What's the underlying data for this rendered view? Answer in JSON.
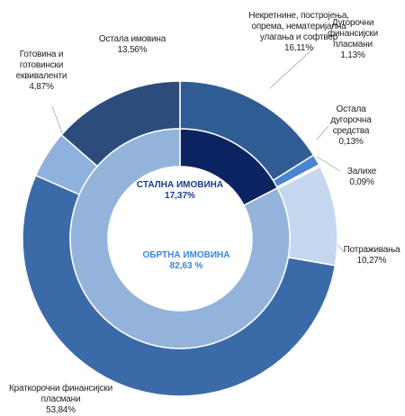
{
  "chart_data": {
    "type": "donut",
    "rings": [
      {
        "categories": [
          "Некретнине, постројења, опрема, нематеријална улагања и софтвер",
          "Дугорочни финансијски пласмани",
          "Остала дугорочна средства",
          "Залихе",
          "Потраживања",
          "Краткорочни финансијски пласмани",
          "Готовина и готовински еквиваленти",
          "Остала имовина"
        ],
        "values": [
          16.11,
          1.13,
          0.13,
          0.09,
          10.27,
          53.84,
          4.87,
          13.56
        ],
        "value_labels": [
          "16,11%",
          "1,13%",
          "0,13%",
          "0,09%",
          "10,27%",
          "53,84%",
          "4,87%",
          "13,56%"
        ],
        "colors": [
          "#2f5d93",
          "#4a86cf",
          "#ffffff",
          "#dbe6f4",
          "#c5d7ee",
          "#3a6aa8",
          "#8fb1dd",
          "#2c4c7c"
        ]
      },
      {
        "categories": [
          "СТАЛНА ИМОВИНА",
          "ОБРТНА ИМОВИНА"
        ],
        "values": [
          17.37,
          82.63
        ],
        "value_labels": [
          "17,37%",
          "82,63 %"
        ],
        "colors": [
          "#0b2461",
          "#94b3da"
        ]
      }
    ]
  }
}
